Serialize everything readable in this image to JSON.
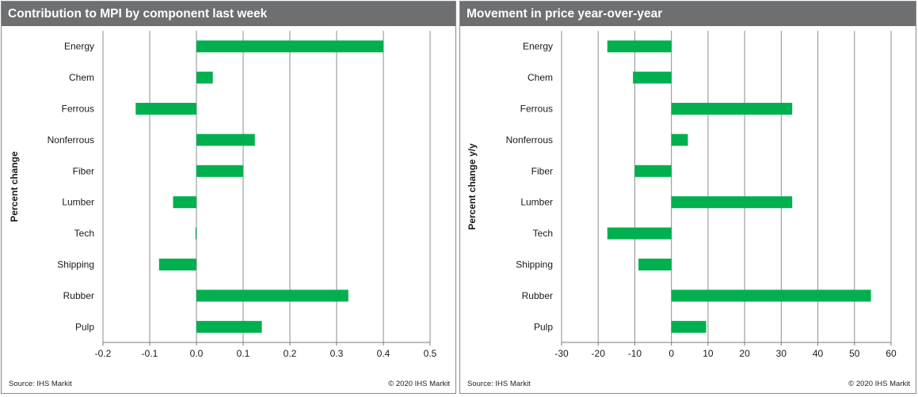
{
  "charts": [
    {
      "header": "Contribution to MPI by component last week",
      "footer_source": "Source:  IHS Markit",
      "footer_copyright": "© 2020  IHS Markit",
      "colors": {
        "bar": "#00b04f",
        "grid": "#8c8c8c",
        "header_bg": "#6d6f71"
      }
    },
    {
      "header": "Movement in price year-over-year",
      "footer_source": "Source:  IHS Markit",
      "footer_copyright": "© 2020  IHS Markit",
      "colors": {
        "bar": "#00b04f",
        "grid": "#8c8c8c",
        "header_bg": "#6d6f71"
      }
    }
  ],
  "chart_data": [
    {
      "type": "bar",
      "orientation": "horizontal",
      "title": "Contribution to MPI by component last week",
      "ylabel": "Percent change",
      "xlabel": "",
      "categories": [
        "Energy",
        "Chem",
        "Ferrous",
        "Nonferrous",
        "Fiber",
        "Lumber",
        "Tech",
        "Shipping",
        "Rubber",
        "Pulp"
      ],
      "values": [
        0.4,
        0.035,
        -0.13,
        0.125,
        0.1,
        -0.05,
        -0.002,
        -0.08,
        0.325,
        0.14
      ],
      "xlim": [
        -0.2,
        0.5
      ],
      "xticks": [
        -0.2,
        -0.1,
        0.0,
        0.1,
        0.2,
        0.3,
        0.4,
        0.5
      ],
      "xtick_labels": [
        "-0.2",
        "-0.1",
        "0.0",
        "0.1",
        "0.2",
        "0.3",
        "0.4",
        "0.5"
      ],
      "grid": "vertical",
      "legend": "none"
    },
    {
      "type": "bar",
      "orientation": "horizontal",
      "title": "Movement in price year-over-year",
      "ylabel": "Percent change y/y",
      "xlabel": "",
      "categories": [
        "Energy",
        "Chem",
        "Ferrous",
        "Nonferrous",
        "Fiber",
        "Lumber",
        "Tech",
        "Shipping",
        "Rubber",
        "Pulp"
      ],
      "values": [
        -17.5,
        -10.5,
        33,
        4.5,
        -10,
        33,
        -17.5,
        -9,
        54.5,
        9.5
      ],
      "xlim": [
        -30,
        60
      ],
      "xticks": [
        -30,
        -20,
        -10,
        0,
        10,
        20,
        30,
        40,
        50,
        60
      ],
      "xtick_labels": [
        "-30",
        "-20",
        "-10",
        "0",
        "10",
        "20",
        "30",
        "40",
        "50",
        "60"
      ],
      "grid": "vertical",
      "legend": "none"
    }
  ]
}
